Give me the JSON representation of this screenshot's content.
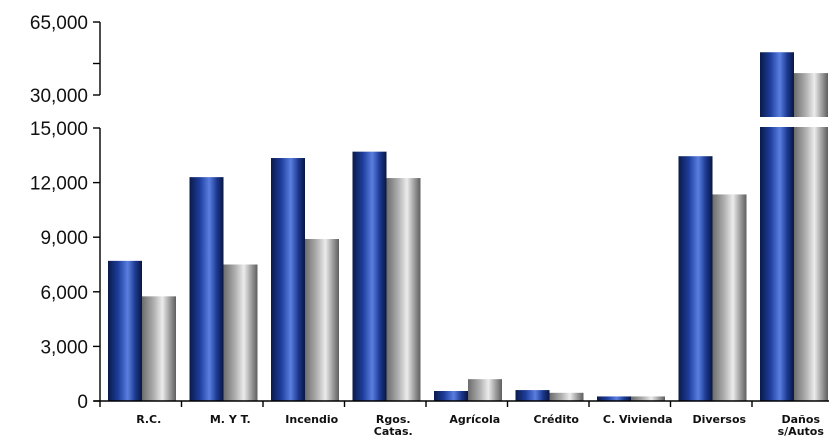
{
  "chart_data": {
    "type": "bar",
    "title": "",
    "xlabel": "",
    "ylabel": "",
    "categories": [
      [
        "R.C."
      ],
      [
        "M. Y T."
      ],
      [
        "Incendio"
      ],
      [
        "Rgos.",
        "Catas."
      ],
      [
        "Agrícola"
      ],
      [
        "Crédito"
      ],
      [
        "C. Vivienda"
      ],
      [
        "Diversos"
      ],
      [
        "Daños",
        "s/Autos"
      ]
    ],
    "series": [
      {
        "color": "#2a4fb0",
        "values": [
          7700,
          12300,
          13350,
          13700,
          550,
          600,
          250,
          13450,
          50500
        ]
      },
      {
        "color": "#a8a8a8",
        "values": [
          5750,
          7500,
          8900,
          12250,
          1200,
          450,
          250,
          11350,
          40500
        ]
      }
    ],
    "yticks_lower": [
      "0",
      "3,000",
      "6,000",
      "9,000",
      "12,000",
      "15,000"
    ],
    "yticks_upper": [
      "30,000",
      "65,000"
    ],
    "ylim_lower": [
      0,
      15000
    ],
    "ylim_upper": [
      30000,
      65000
    ],
    "axis_break": true,
    "legend": "none",
    "grid": false
  }
}
